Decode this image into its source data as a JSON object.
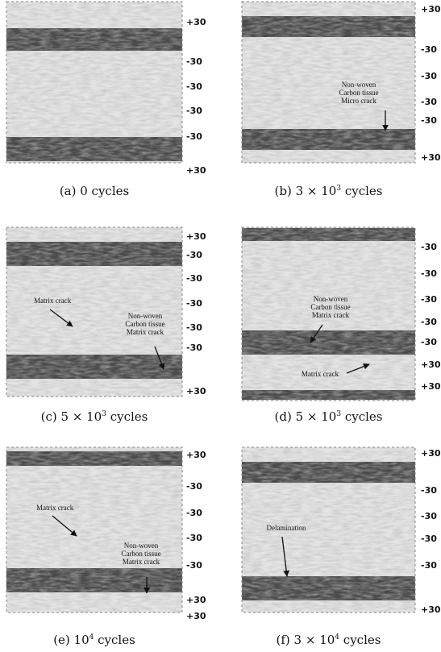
{
  "panels": [
    {
      "caption": {
        "text": "(a) 0 cycles"
      },
      "ply_labels": [
        "+30",
        "-30",
        "-30",
        "-30",
        "-30",
        "+30"
      ],
      "annotations": []
    },
    {
      "caption": {
        "text": "(b) 3 × 10",
        "sup": "3",
        "tail": " cycles"
      },
      "ply_labels": [
        "+30",
        "-30",
        "-30",
        "-30",
        "-30",
        "+30"
      ],
      "annotations": [
        {
          "lines": [
            "Non-woven",
            "Carbon tissue",
            "Micro crack"
          ]
        }
      ]
    },
    {
      "caption": {
        "text": "(c) 5 × 10",
        "sup": "3",
        "tail": " cycles"
      },
      "ply_labels": [
        "+30",
        "-30",
        "-30",
        "-30",
        "-30",
        "-30",
        "+30"
      ],
      "annotations": [
        {
          "lines": [
            "Matrix crack"
          ]
        },
        {
          "lines": [
            "Non-woven",
            "Carbon tissue",
            "Matrix crack"
          ]
        }
      ]
    },
    {
      "caption": {
        "text": "(d) 5 × 10",
        "sup": "3",
        "tail": " cycles"
      },
      "ply_labels": [
        "-30",
        "-30",
        "-30",
        "-30",
        "-30",
        "+30",
        "+30"
      ],
      "annotations": [
        {
          "lines": [
            "Non-woven",
            "Carbon tissue",
            "Matrix crack"
          ]
        },
        {
          "lines": [
            "Matrix crack"
          ]
        }
      ]
    },
    {
      "caption": {
        "text": "(e) 10",
        "sup": "4",
        "tail": " cycles"
      },
      "ply_labels": [
        "+30",
        "-30",
        "-30",
        "-30",
        "-30",
        "+30",
        "+30"
      ],
      "annotations": [
        {
          "lines": [
            "Matrix crack"
          ]
        },
        {
          "lines": [
            "Non-woven",
            "Carbon tissue",
            "Matrix crack"
          ]
        }
      ]
    },
    {
      "caption": {
        "text": "(f) 3 × 10",
        "sup": "4",
        "tail": " cycles"
      },
      "ply_labels": [
        "+30",
        "-30",
        "-30",
        "-30",
        "-30",
        "+30"
      ],
      "annotations": [
        {
          "lines": [
            "Delamination"
          ]
        }
      ]
    }
  ]
}
